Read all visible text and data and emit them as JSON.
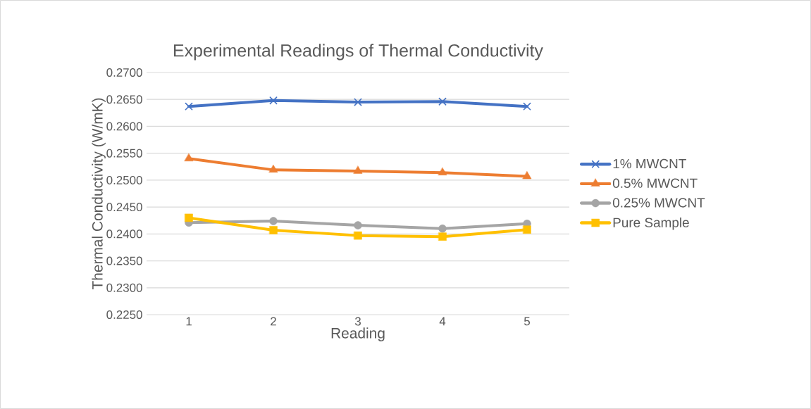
{
  "chart_data": {
    "type": "line",
    "title": "Experimental Readings of Thermal Conductivity",
    "xlabel": "Reading",
    "ylabel": "Thermal Conductivity (W/mK)",
    "categories": [
      "1",
      "2",
      "3",
      "4",
      "5"
    ],
    "series": [
      {
        "name": "1% MWCNT",
        "color": "#4472c4",
        "marker": "cross",
        "values": [
          0.2637,
          0.2648,
          0.2645,
          0.2646,
          0.2637
        ]
      },
      {
        "name": "0.5% MWCNT",
        "color": "#ed7d31",
        "marker": "triangle",
        "values": [
          0.254,
          0.2519,
          0.2517,
          0.2514,
          0.2507
        ]
      },
      {
        "name": "0.25% MWCNT",
        "color": "#a5a5a5",
        "marker": "circle",
        "values": [
          0.2421,
          0.2424,
          0.2416,
          0.241,
          0.2419
        ]
      },
      {
        "name": "Pure Sample",
        "color": "#ffc000",
        "marker": "square",
        "values": [
          0.243,
          0.2407,
          0.2397,
          0.2395,
          0.2408
        ]
      }
    ],
    "ylim": [
      0.225,
      0.27
    ],
    "yticks": [
      {
        "value": 0.225,
        "label": "0.2250"
      },
      {
        "value": 0.23,
        "label": "0.2300"
      },
      {
        "value": 0.235,
        "label": "0.2350"
      },
      {
        "value": 0.24,
        "label": "0.2400"
      },
      {
        "value": 0.245,
        "label": "0.2450"
      },
      {
        "value": 0.25,
        "label": "0.2500"
      },
      {
        "value": 0.255,
        "label": "0.2550"
      },
      {
        "value": 0.26,
        "label": "0.2600"
      },
      {
        "value": 0.265,
        "label": "0.2650"
      },
      {
        "value": 0.27,
        "label": "0.2700"
      }
    ],
    "grid": "y",
    "legend": "right",
    "line_style": "solid"
  }
}
